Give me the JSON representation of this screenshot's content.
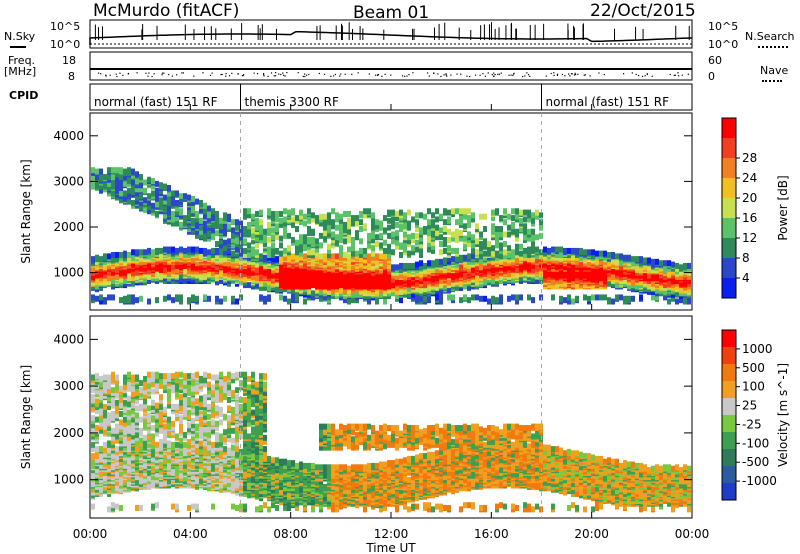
{
  "header": {
    "station": "McMurdo (fitACF)",
    "beam": "Beam 01",
    "date": "22/Oct/2015"
  },
  "top_panel": {
    "left_label": "N.Sky",
    "left_ticks": [
      "10^5",
      "10^0"
    ],
    "right_label": "N.Search",
    "right_ticks": [
      "10^5",
      "10^0"
    ]
  },
  "freq_panel": {
    "left_label": "Freq.",
    "left_unit": "[MHz]",
    "left_ticks": [
      "18",
      "8"
    ],
    "right_label": "Nave",
    "right_ticks": [
      "60",
      "0"
    ]
  },
  "cpid": {
    "label": "CPID",
    "segments": [
      {
        "text": "normal (fast) 151 RF",
        "start_h": 0,
        "end_h": 6
      },
      {
        "text": "themis 3300 RF",
        "start_h": 6,
        "end_h": 18
      },
      {
        "text": "normal (fast) 151 RF",
        "start_h": 18,
        "end_h": 24
      }
    ]
  },
  "x_axis": {
    "label": "Time UT",
    "ticks": [
      "00:00",
      "04:00",
      "08:00",
      "12:00",
      "16:00",
      "20:00",
      "00:00"
    ]
  },
  "chart_data": [
    {
      "type": "heatmap",
      "title": "",
      "ylabel": "Slant Range [km]",
      "xlabel": "Time UT",
      "ylim": [
        180,
        4500
      ],
      "xlim": [
        0,
        24
      ],
      "y_ticks": [
        "1000",
        "2000",
        "3000",
        "4000"
      ],
      "colorbar": {
        "label": "Power [dB]",
        "ticks": [
          "4",
          "8",
          "12",
          "16",
          "20",
          "24",
          "28"
        ],
        "colors": [
          "#0a1ef0",
          "#2a48c8",
          "#2f8a5a",
          "#5cc26a",
          "#c8e050",
          "#f0c020",
          "#f08020",
          "#f04020",
          "#ff0000"
        ]
      },
      "features": [
        {
          "time_range_h": [
            0,
            6
          ],
          "range_km": [
            700,
            1000
          ],
          "description": "weak-moderate echoes"
        },
        {
          "time_range_h": [
            7.5,
            12
          ],
          "range_km": [
            600,
            1300
          ],
          "description": "strong echoes up to 28+ dB"
        },
        {
          "time_range_h": [
            18,
            20.5
          ],
          "range_km": [
            600,
            1000
          ],
          "description": "strong echoes"
        }
      ]
    },
    {
      "type": "heatmap",
      "title": "",
      "ylabel": "Slant Range [km]",
      "xlabel": "Time UT",
      "ylim": [
        180,
        4500
      ],
      "xlim": [
        0,
        24
      ],
      "y_ticks": [
        "1000",
        "2000",
        "3000",
        "4000"
      ],
      "colorbar": {
        "label": "Velocity [m s^-1]",
        "ticks": [
          "1000",
          "500",
          "100",
          "25",
          "-25",
          "-100",
          "-500",
          "-1000"
        ],
        "colors": [
          "#1e3cc8",
          "#2a5aa0",
          "#2f7a5a",
          "#3ca050",
          "#78c840",
          "#c8c8c8",
          "#f0a020",
          "#f07a10",
          "#f04010",
          "#ff0000"
        ]
      },
      "features": [
        {
          "time_range_h": [
            0,
            6
          ],
          "range_km": [
            600,
            3200
          ],
          "description": "mixed weak velocities, grey/green"
        },
        {
          "time_range_h": [
            6,
            9.5
          ],
          "range_km": [
            600,
            1800
          ],
          "description": "toward radar (green)"
        },
        {
          "time_range_h": [
            9.5,
            18
          ],
          "range_km": [
            600,
            2100
          ],
          "description": "away from radar (orange)"
        },
        {
          "time_range_h": [
            18,
            24
          ],
          "range_km": [
            600,
            1800
          ],
          "description": "mixed orange and green"
        }
      ]
    }
  ],
  "colors": {
    "axes": "#000000",
    "background": "#ffffff"
  }
}
